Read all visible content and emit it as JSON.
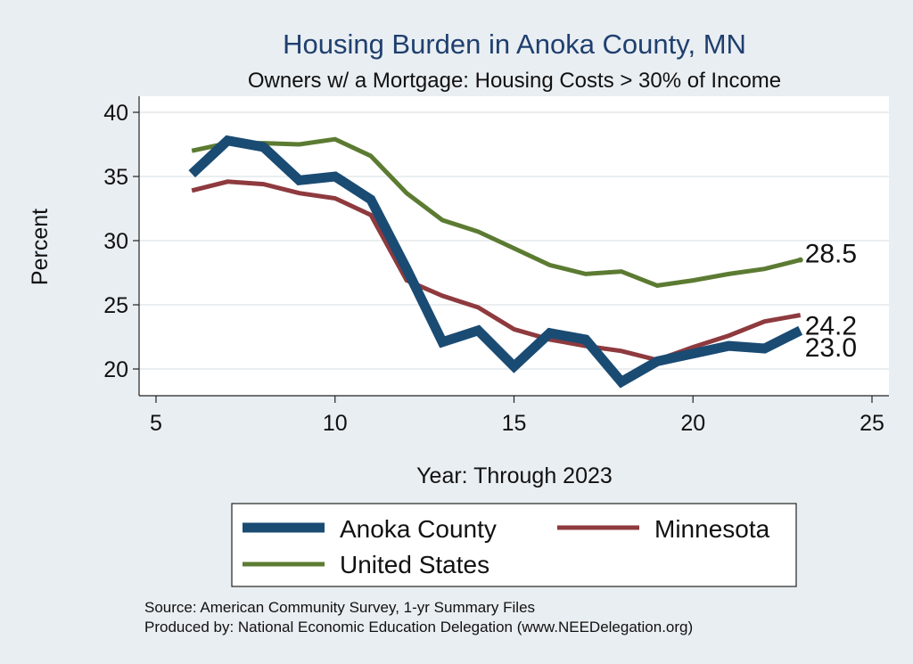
{
  "chart_data": {
    "type": "line",
    "title": "Housing Burden in Anoka County, MN",
    "subtitle": "Owners w/ a Mortgage: Housing Costs > 30% of Income",
    "xlabel": "Year: Through 2023",
    "ylabel": "Percent",
    "xlim": [
      5,
      25
    ],
    "ylim": [
      18,
      41
    ],
    "xticks": [
      5,
      10,
      15,
      20,
      25
    ],
    "yticks": [
      20,
      25,
      30,
      35,
      40
    ],
    "grid": true,
    "legend_position": "bottom",
    "series": [
      {
        "name": "Anoka County",
        "color": "#1a4b73",
        "x": [
          6,
          7,
          8,
          9,
          10,
          11,
          12,
          13,
          14,
          15,
          16,
          17,
          18,
          19,
          20,
          21,
          22,
          23
        ],
        "values": [
          35.2,
          37.8,
          37.3,
          34.7,
          35.0,
          33.2,
          27.8,
          22.1,
          23.0,
          20.2,
          22.8,
          22.3,
          19.0,
          20.6,
          21.2,
          21.8,
          21.6,
          23.0
        ],
        "end_label": "23.0"
      },
      {
        "name": "Minnesota",
        "color": "#8e3a3e",
        "x": [
          6,
          7,
          8,
          9,
          10,
          11,
          12,
          13,
          14,
          15,
          16,
          17,
          18,
          19,
          20,
          21,
          22,
          23
        ],
        "values": [
          33.9,
          34.6,
          34.4,
          33.7,
          33.3,
          32.0,
          26.9,
          25.7,
          24.8,
          23.1,
          22.3,
          21.8,
          21.4,
          20.7,
          21.7,
          22.6,
          23.7,
          24.2
        ],
        "end_label": "24.2"
      },
      {
        "name": "United States",
        "color": "#5c7b32",
        "x": [
          6,
          7,
          8,
          9,
          10,
          11,
          12,
          13,
          14,
          15,
          16,
          17,
          18,
          19,
          20,
          21,
          22,
          23
        ],
        "values": [
          37.0,
          37.6,
          37.6,
          37.5,
          37.9,
          36.6,
          33.7,
          31.6,
          30.7,
          29.4,
          28.1,
          27.4,
          27.6,
          26.5,
          26.9,
          27.4,
          27.8,
          28.5
        ],
        "end_label": "28.5"
      }
    ]
  },
  "notes": {
    "source": "Source: American Community Survey, 1-yr Summary Files",
    "producer": "Produced by: National Economic Education Delegation (www.NEEDelegation.org)"
  },
  "colors": {
    "background": "#e9eef2",
    "plot_area": "#ffffff",
    "title": "#1f3f6e"
  }
}
